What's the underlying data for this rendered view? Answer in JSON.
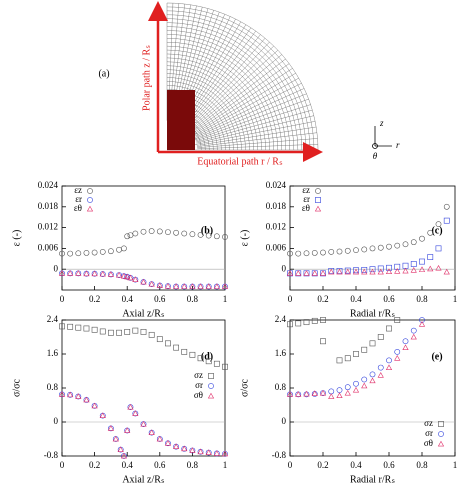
{
  "diagram": {
    "label": "(a)",
    "polar_path": "Polar path z / Rₛ",
    "equatorial_path": "Equatorial path r / Rₛ",
    "axis_z": "z",
    "axis_r": "r",
    "axis_theta": "θ"
  },
  "chart_data": [
    {
      "type": "scatter",
      "label": "(b)",
      "x_label": "Axial z/Rₛ",
      "y_label": "ε (-)",
      "xlim": [
        0,
        1
      ],
      "xticks": [
        0,
        0.2,
        0.4,
        0.6,
        0.8,
        1
      ],
      "ylim": [
        -0.006,
        0.024
      ],
      "yticks": [
        0.024,
        0.018,
        0.012,
        0.006,
        0
      ],
      "hlines": [
        0
      ],
      "legend": "top-left",
      "series": [
        {
          "name": "εz",
          "color": "#555555",
          "marker": "circle",
          "x": [
            0,
            0.05,
            0.1,
            0.15,
            0.2,
            0.25,
            0.3,
            0.35,
            0.38,
            0.4,
            0.42,
            0.45,
            0.5,
            0.55,
            0.6,
            0.65,
            0.7,
            0.75,
            0.8,
            0.85,
            0.9,
            0.95,
            1
          ],
          "values": [
            0.0045,
            0.0045,
            0.0046,
            0.0047,
            0.0048,
            0.005,
            0.0052,
            0.0056,
            0.006,
            0.0095,
            0.0098,
            0.0103,
            0.0108,
            0.011,
            0.0109,
            0.0107,
            0.0105,
            0.0103,
            0.0101,
            0.0099,
            0.0097,
            0.0095,
            0.0093
          ]
        },
        {
          "name": "εr",
          "color": "#3344dd",
          "marker": "circle",
          "x": [
            0,
            0.05,
            0.1,
            0.15,
            0.2,
            0.25,
            0.3,
            0.35,
            0.38,
            0.4,
            0.42,
            0.45,
            0.5,
            0.55,
            0.6,
            0.65,
            0.7,
            0.75,
            0.8,
            0.85,
            0.9,
            0.95,
            1
          ],
          "values": [
            -0.0012,
            -0.0012,
            -0.0012,
            -0.0013,
            -0.0013,
            -0.0014,
            -0.0015,
            -0.0017,
            -0.002,
            -0.0022,
            -0.0025,
            -0.003,
            -0.0037,
            -0.0043,
            -0.0047,
            -0.0049,
            -0.005,
            -0.005,
            -0.005,
            -0.005,
            -0.005,
            -0.005,
            -0.005
          ]
        },
        {
          "name": "εθ",
          "color": "#e0306a",
          "marker": "triangle",
          "x": [
            0,
            0.05,
            0.1,
            0.15,
            0.2,
            0.25,
            0.3,
            0.35,
            0.38,
            0.4,
            0.42,
            0.45,
            0.5,
            0.55,
            0.6,
            0.65,
            0.7,
            0.75,
            0.8,
            0.85,
            0.9,
            0.95,
            1
          ],
          "values": [
            -0.0012,
            -0.0012,
            -0.0012,
            -0.0013,
            -0.0013,
            -0.0014,
            -0.0015,
            -0.0017,
            -0.002,
            -0.0022,
            -0.0025,
            -0.003,
            -0.0037,
            -0.0043,
            -0.0047,
            -0.0049,
            -0.005,
            -0.005,
            -0.005,
            -0.005,
            -0.005,
            -0.005,
            -0.005
          ]
        }
      ]
    },
    {
      "type": "scatter",
      "label": "(c)",
      "x_label": "Radial r/Rₛ",
      "y_label": "ε (-)",
      "xlim": [
        0,
        1
      ],
      "xticks": [
        0,
        0.2,
        0.4,
        0.6,
        0.8,
        1
      ],
      "ylim": [
        -0.006,
        0.024
      ],
      "yticks": [
        0.024,
        0.018,
        0.012,
        0.006,
        0
      ],
      "hlines": [
        0
      ],
      "legend": "top-left",
      "series": [
        {
          "name": "εz",
          "color": "#555555",
          "marker": "circle",
          "x": [
            0,
            0.05,
            0.1,
            0.15,
            0.2,
            0.25,
            0.3,
            0.35,
            0.4,
            0.45,
            0.5,
            0.55,
            0.6,
            0.65,
            0.7,
            0.75,
            0.8,
            0.85,
            0.9,
            0.95
          ],
          "values": [
            0.0045,
            0.0045,
            0.0046,
            0.0047,
            0.0048,
            0.005,
            0.0051,
            0.0053,
            0.0055,
            0.0057,
            0.006,
            0.0062,
            0.0065,
            0.0068,
            0.0072,
            0.0078,
            0.0088,
            0.0105,
            0.013,
            0.018
          ]
        },
        {
          "name": "εr",
          "color": "#3344dd",
          "marker": "square",
          "x": [
            0,
            0.05,
            0.1,
            0.15,
            0.2,
            0.25,
            0.3,
            0.35,
            0.4,
            0.45,
            0.5,
            0.55,
            0.6,
            0.65,
            0.7,
            0.75,
            0.8,
            0.85,
            0.9,
            0.95
          ],
          "values": [
            -0.0012,
            -0.0012,
            -0.0012,
            -0.0012,
            -0.0012,
            -0.0005,
            -0.0005,
            -0.0004,
            -0.0003,
            -0.0002,
            0,
            0.0002,
            0.0004,
            0.0007,
            0.001,
            0.0015,
            0.0022,
            0.0035,
            0.006,
            0.014
          ]
        },
        {
          "name": "εθ",
          "color": "#e0306a",
          "marker": "triangle",
          "x": [
            0,
            0.05,
            0.1,
            0.15,
            0.2,
            0.25,
            0.3,
            0.35,
            0.4,
            0.45,
            0.5,
            0.55,
            0.6,
            0.65,
            0.7,
            0.75,
            0.8,
            0.85,
            0.9,
            0.95
          ],
          "values": [
            -0.0012,
            -0.0012,
            -0.0012,
            -0.0012,
            -0.0012,
            -0.0008,
            -0.0008,
            -0.0008,
            -0.0008,
            -0.0008,
            -0.0008,
            -0.0008,
            -0.0007,
            -0.0006,
            -0.0005,
            -0.0003,
            -0.0001,
            0.0001,
            0.0003,
            -0.0008
          ]
        }
      ]
    },
    {
      "type": "scatter",
      "label": "(d)",
      "x_label": "Axial z/Rₛ",
      "y_label": "σ/σc",
      "xlim": [
        0,
        1
      ],
      "xticks": [
        0,
        0.2,
        0.4,
        0.6,
        0.8,
        1
      ],
      "ylim": [
        -0.8,
        2.4
      ],
      "yticks": [
        2.4,
        1.6,
        0.8,
        0,
        -0.8
      ],
      "hlines": [
        0
      ],
      "legend": "right",
      "series": [
        {
          "name": "σz",
          "color": "#555555",
          "marker": "square",
          "x": [
            0,
            0.05,
            0.1,
            0.15,
            0.2,
            0.25,
            0.3,
            0.35,
            0.4,
            0.45,
            0.5,
            0.55,
            0.6,
            0.65,
            0.7,
            0.75,
            0.8,
            0.85,
            0.9,
            0.95,
            1
          ],
          "values": [
            2.25,
            2.24,
            2.22,
            2.2,
            2.17,
            2.13,
            2.1,
            2.1,
            2.12,
            2.15,
            2.12,
            2.05,
            1.95,
            1.85,
            1.75,
            1.65,
            1.58,
            1.5,
            1.43,
            1.37,
            1.3
          ]
        },
        {
          "name": "σr",
          "color": "#3344dd",
          "marker": "circle",
          "x": [
            0,
            0.05,
            0.1,
            0.15,
            0.2,
            0.25,
            0.3,
            0.33,
            0.36,
            0.38,
            0.4,
            0.42,
            0.45,
            0.5,
            0.55,
            0.6,
            0.65,
            0.7,
            0.75,
            0.8,
            0.85,
            0.9,
            0.95,
            1
          ],
          "values": [
            0.65,
            0.64,
            0.6,
            0.52,
            0.38,
            0.15,
            -0.15,
            -0.4,
            -0.65,
            -0.8,
            -0.2,
            0.35,
            0.2,
            -0.05,
            -0.25,
            -0.4,
            -0.5,
            -0.58,
            -0.63,
            -0.67,
            -0.7,
            -0.72,
            -0.74,
            -0.75
          ]
        },
        {
          "name": "σθ",
          "color": "#e0306a",
          "marker": "triangle",
          "x": [
            0,
            0.05,
            0.1,
            0.15,
            0.2,
            0.25,
            0.3,
            0.33,
            0.36,
            0.38,
            0.4,
            0.42,
            0.45,
            0.5,
            0.55,
            0.6,
            0.65,
            0.7,
            0.75,
            0.8,
            0.85,
            0.9,
            0.95,
            1
          ],
          "values": [
            0.65,
            0.64,
            0.6,
            0.52,
            0.38,
            0.15,
            -0.15,
            -0.4,
            -0.65,
            -0.8,
            -0.2,
            0.35,
            0.2,
            -0.05,
            -0.25,
            -0.4,
            -0.5,
            -0.58,
            -0.63,
            -0.67,
            -0.7,
            -0.72,
            -0.74,
            -0.75
          ]
        }
      ]
    },
    {
      "type": "scatter",
      "label": "(e)",
      "x_label": "Radial r/Rₛ",
      "y_label": "σ/σc",
      "xlim": [
        0,
        1
      ],
      "xticks": [
        0,
        0.2,
        0.4,
        0.6,
        0.8,
        1
      ],
      "ylim": [
        -0.8,
        2.4
      ],
      "yticks": [
        2.4,
        1.6,
        0.8,
        0,
        -0.8
      ],
      "hlines": [
        0
      ],
      "legend": "bottom-right",
      "series": [
        {
          "name": "σz",
          "color": "#555555",
          "marker": "square",
          "x": [
            0,
            0.05,
            0.1,
            0.15,
            0.2,
            0.2,
            0.3,
            0.35,
            0.4,
            0.45,
            0.5,
            0.55,
            0.6,
            0.65
          ],
          "values": [
            2.3,
            2.32,
            2.35,
            2.38,
            2.4,
            1.9,
            1.45,
            1.5,
            1.6,
            1.7,
            1.85,
            2.0,
            2.2,
            2.4
          ]
        },
        {
          "name": "σr",
          "color": "#3344dd",
          "marker": "circle",
          "x": [
            0,
            0.05,
            0.1,
            0.15,
            0.2,
            0.25,
            0.3,
            0.35,
            0.4,
            0.45,
            0.5,
            0.55,
            0.6,
            0.65,
            0.7,
            0.75,
            0.8
          ],
          "values": [
            0.65,
            0.65,
            0.65,
            0.66,
            0.68,
            0.72,
            0.75,
            0.82,
            0.9,
            1.0,
            1.12,
            1.28,
            1.45,
            1.65,
            1.9,
            2.15,
            2.4
          ]
        },
        {
          "name": "σθ",
          "color": "#e0306a",
          "marker": "triangle",
          "x": [
            0,
            0.05,
            0.1,
            0.15,
            0.2,
            0.25,
            0.3,
            0.35,
            0.4,
            0.45,
            0.5,
            0.55,
            0.6,
            0.65,
            0.7,
            0.75,
            0.8
          ],
          "values": [
            0.65,
            0.65,
            0.66,
            0.67,
            0.68,
            0.6,
            0.62,
            0.68,
            0.75,
            0.85,
            0.97,
            1.1,
            1.28,
            1.5,
            1.75,
            2.0,
            2.3
          ]
        }
      ]
    }
  ]
}
